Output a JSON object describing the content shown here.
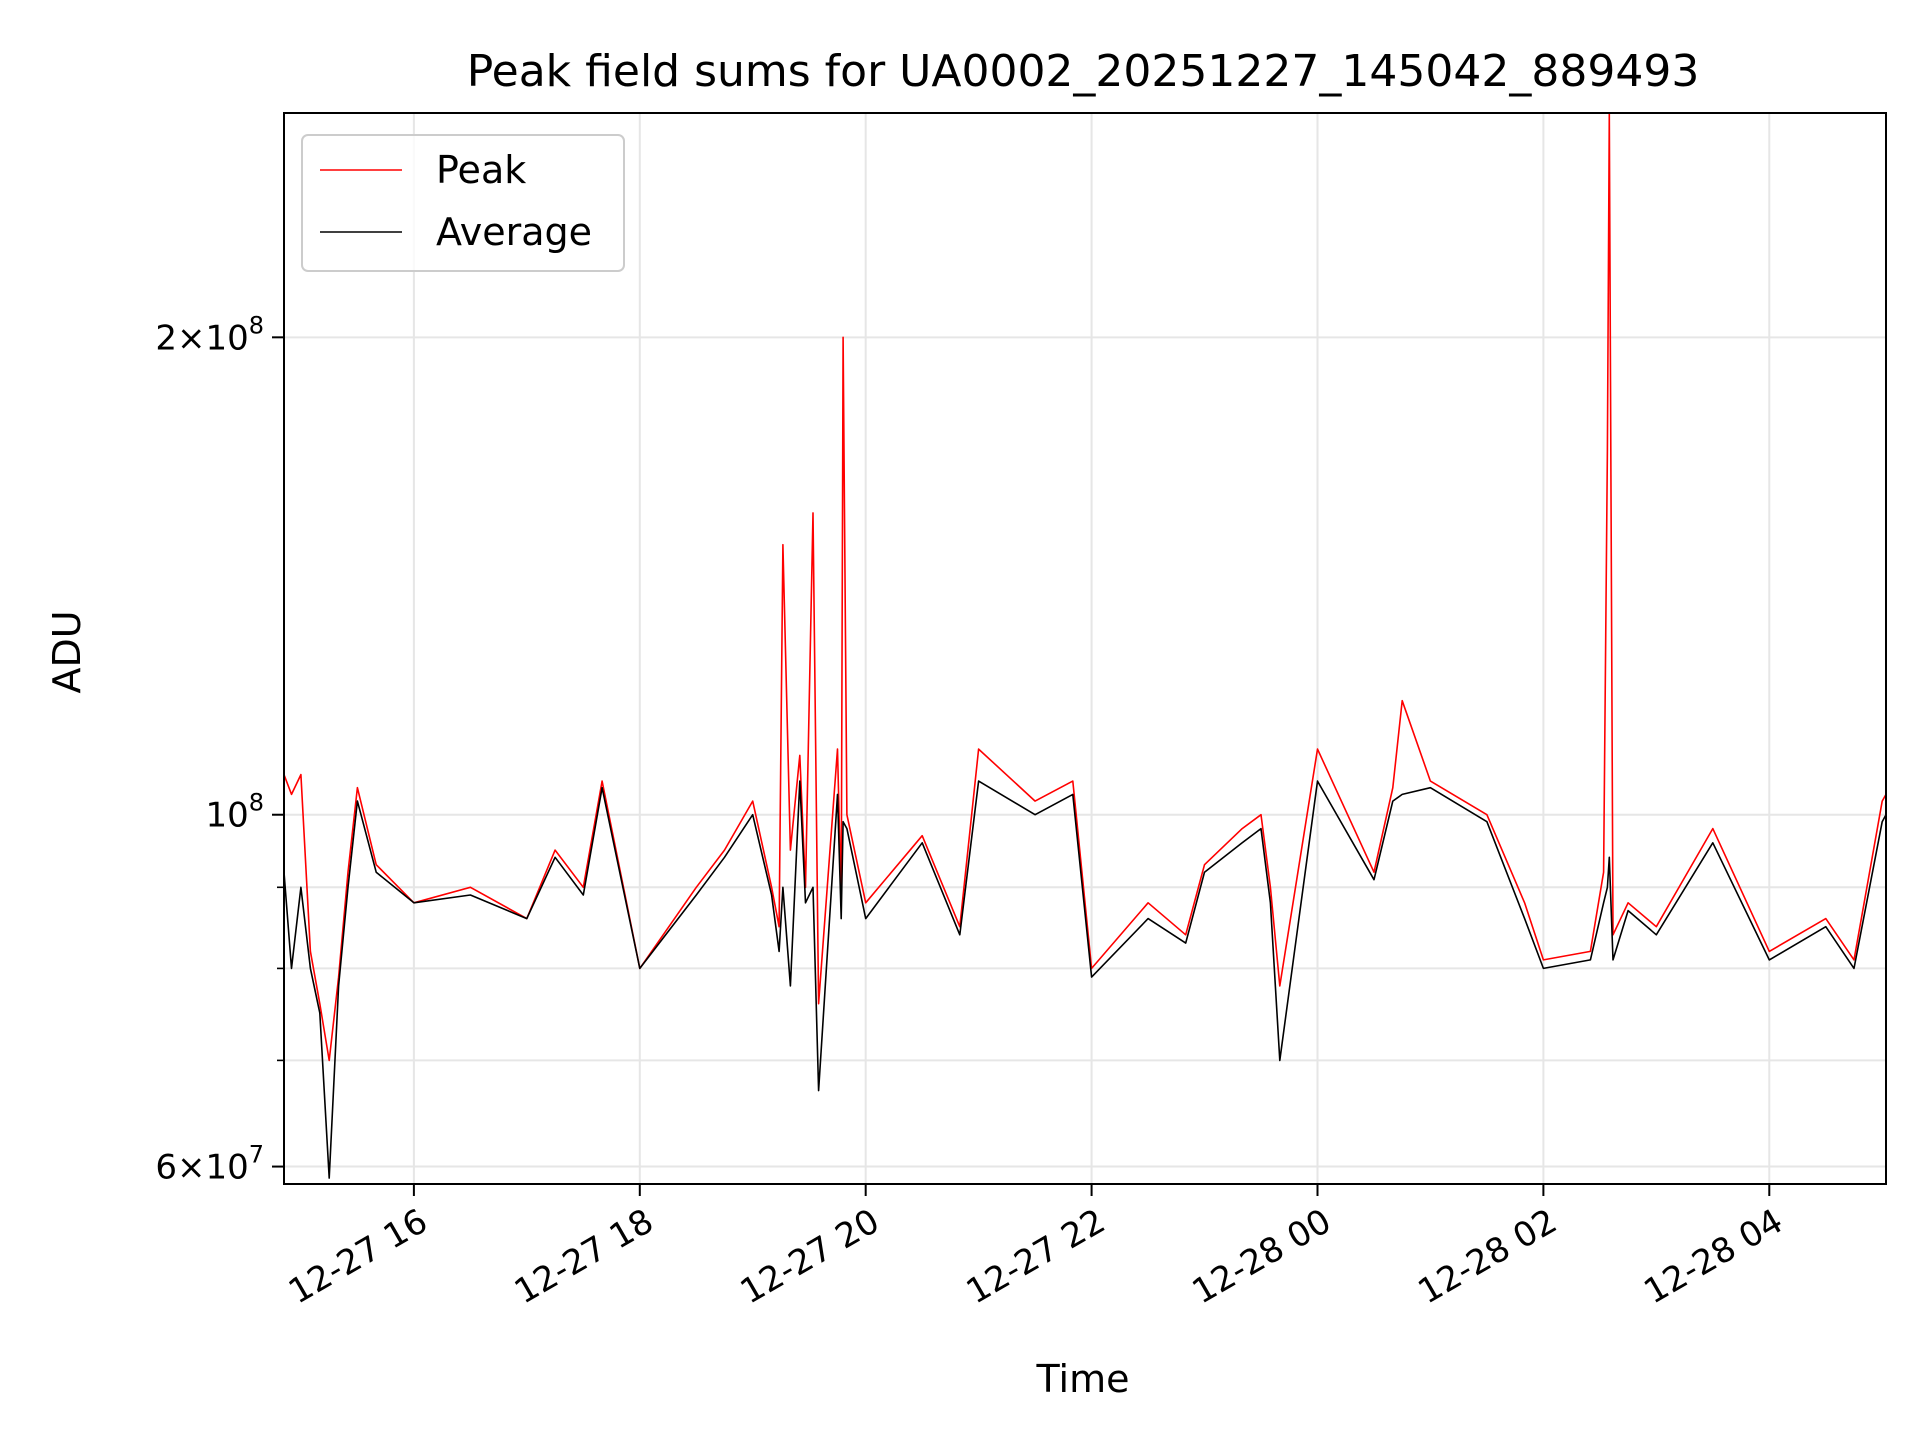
{
  "chart_data": {
    "type": "line",
    "title": "Peak field sums for UA0002_20251227_145042_889493",
    "xlabel": "Time",
    "ylabel": "ADU",
    "y_scale": "log",
    "ylim": [
      58500000,
      277000000
    ],
    "xlim": [
      "2025-12-27 14:51",
      "2025-12-28 05:02"
    ],
    "grid": true,
    "legend_position": "top-left",
    "x_ticks": [
      {
        "at": "2025-12-27 16:00",
        "label": "12-27 16"
      },
      {
        "at": "2025-12-27 18:00",
        "label": "12-27 18"
      },
      {
        "at": "2025-12-27 20:00",
        "label": "12-27 20"
      },
      {
        "at": "2025-12-27 22:00",
        "label": "12-27 22"
      },
      {
        "at": "2025-12-28 00:00",
        "label": "12-28 00"
      },
      {
        "at": "2025-12-28 02:00",
        "label": "12-28 02"
      },
      {
        "at": "2025-12-28 04:00",
        "label": "12-28 04"
      }
    ],
    "y_ticks": [
      {
        "value": 60000000,
        "mantissa": "6",
        "exponent": "7"
      },
      {
        "value": 100000000,
        "mantissa": "",
        "exponent": "8"
      },
      {
        "value": 200000000,
        "mantissa": "2",
        "exponent": "8"
      }
    ],
    "y_minor_ticks": [
      70000000,
      80000000,
      90000000
    ],
    "series": [
      {
        "name": "Peak",
        "color": "#ff0000",
        "x": [
          "2025-12-27 14:51",
          "2025-12-27 14:55",
          "2025-12-27 15:00",
          "2025-12-27 15:05",
          "2025-12-27 15:10",
          "2025-12-27 15:15",
          "2025-12-27 15:20",
          "2025-12-27 15:25",
          "2025-12-27 15:30",
          "2025-12-27 15:40",
          "2025-12-27 16:00",
          "2025-12-27 16:30",
          "2025-12-27 17:00",
          "2025-12-27 17:15",
          "2025-12-27 17:30",
          "2025-12-27 17:40",
          "2025-12-27 18:00",
          "2025-12-27 18:30",
          "2025-12-27 18:45",
          "2025-12-27 19:00",
          "2025-12-27 19:10",
          "2025-12-27 19:14",
          "2025-12-27 19:16",
          "2025-12-27 19:20",
          "2025-12-27 19:25",
          "2025-12-27 19:28",
          "2025-12-27 19:32",
          "2025-12-27 19:35",
          "2025-12-27 19:45",
          "2025-12-27 19:47",
          "2025-12-27 19:48",
          "2025-12-27 19:50",
          "2025-12-27 20:00",
          "2025-12-27 20:30",
          "2025-12-27 20:50",
          "2025-12-27 21:00",
          "2025-12-27 21:30",
          "2025-12-27 21:50",
          "2025-12-27 22:00",
          "2025-12-27 22:30",
          "2025-12-27 22:50",
          "2025-12-27 23:00",
          "2025-12-27 23:20",
          "2025-12-27 23:30",
          "2025-12-27 23:35",
          "2025-12-27 23:40",
          "2025-12-28 00:00",
          "2025-12-28 00:30",
          "2025-12-28 00:40",
          "2025-12-28 00:45",
          "2025-12-28 01:00",
          "2025-12-28 01:30",
          "2025-12-28 01:50",
          "2025-12-28 02:00",
          "2025-12-28 02:25",
          "2025-12-28 02:32",
          "2025-12-28 02:34",
          "2025-12-28 02:35",
          "2025-12-28 02:37",
          "2025-12-28 02:45",
          "2025-12-28 03:00",
          "2025-12-28 03:30",
          "2025-12-28 04:00",
          "2025-12-28 04:30",
          "2025-12-28 04:45",
          "2025-12-28 05:00",
          "2025-12-28 05:02"
        ],
        "y": [
          106000000,
          103000000,
          106000000,
          82000000,
          76000000,
          70000000,
          79000000,
          92000000,
          104000000,
          93000000,
          88000000,
          90000000,
          86000000,
          95000000,
          90000000,
          105000000,
          80000000,
          90000000,
          95000000,
          102000000,
          90000000,
          85000000,
          148000000,
          95000000,
          109000000,
          90000000,
          155000000,
          76000000,
          110000000,
          88000000,
          200000000,
          100000000,
          88000000,
          97000000,
          85000000,
          110000000,
          102000000,
          105000000,
          80000000,
          88000000,
          84000000,
          93000000,
          98000000,
          100000000,
          90000000,
          78000000,
          110000000,
          92000000,
          104000000,
          118000000,
          105000000,
          100000000,
          88000000,
          81000000,
          82000000,
          92000000,
          170000000,
          277000000,
          84000000,
          88000000,
          85000000,
          98000000,
          82000000,
          86000000,
          81000000,
          102000000,
          103000000
        ]
      },
      {
        "name": "Average",
        "color": "#000000",
        "x": [
          "2025-12-27 14:51",
          "2025-12-27 14:55",
          "2025-12-27 15:00",
          "2025-12-27 15:05",
          "2025-12-27 15:10",
          "2025-12-27 15:15",
          "2025-12-27 15:20",
          "2025-12-27 15:25",
          "2025-12-27 15:30",
          "2025-12-27 15:40",
          "2025-12-27 16:00",
          "2025-12-27 16:30",
          "2025-12-27 17:00",
          "2025-12-27 17:15",
          "2025-12-27 17:30",
          "2025-12-27 17:40",
          "2025-12-27 18:00",
          "2025-12-27 18:30",
          "2025-12-27 18:45",
          "2025-12-27 19:00",
          "2025-12-27 19:10",
          "2025-12-27 19:14",
          "2025-12-27 19:16",
          "2025-12-27 19:20",
          "2025-12-27 19:25",
          "2025-12-27 19:28",
          "2025-12-27 19:32",
          "2025-12-27 19:35",
          "2025-12-27 19:45",
          "2025-12-27 19:47",
          "2025-12-27 19:48",
          "2025-12-27 19:50",
          "2025-12-27 20:00",
          "2025-12-27 20:30",
          "2025-12-27 20:50",
          "2025-12-27 21:00",
          "2025-12-27 21:30",
          "2025-12-27 21:50",
          "2025-12-27 22:00",
          "2025-12-27 22:30",
          "2025-12-27 22:50",
          "2025-12-27 23:00",
          "2025-12-27 23:20",
          "2025-12-27 23:30",
          "2025-12-27 23:35",
          "2025-12-27 23:40",
          "2025-12-28 00:00",
          "2025-12-28 00:30",
          "2025-12-28 00:40",
          "2025-12-28 00:45",
          "2025-12-28 01:00",
          "2025-12-28 01:30",
          "2025-12-28 01:50",
          "2025-12-28 02:00",
          "2025-12-28 02:25",
          "2025-12-28 02:32",
          "2025-12-28 02:34",
          "2025-12-28 02:35",
          "2025-12-28 02:37",
          "2025-12-28 02:45",
          "2025-12-28 03:00",
          "2025-12-28 03:30",
          "2025-12-28 04:00",
          "2025-12-28 04:30",
          "2025-12-28 04:45",
          "2025-12-28 05:00",
          "2025-12-28 05:02"
        ],
        "y": [
          92000000,
          80000000,
          90000000,
          80000000,
          75000000,
          59000000,
          78000000,
          90000000,
          102000000,
          92000000,
          88000000,
          89000000,
          86000000,
          94000000,
          89000000,
          104000000,
          80000000,
          89000000,
          94000000,
          100000000,
          89000000,
          82000000,
          90000000,
          78000000,
          105000000,
          88000000,
          90000000,
          67000000,
          103000000,
          86000000,
          99000000,
          98000000,
          86000000,
          96000000,
          84000000,
          105000000,
          100000000,
          103000000,
          79000000,
          86000000,
          83000000,
          92000000,
          96000000,
          98000000,
          88000000,
          70000000,
          105000000,
          91000000,
          102000000,
          103000000,
          104000000,
          99000000,
          86000000,
          80000000,
          81000000,
          88000000,
          90000000,
          94000000,
          81000000,
          87000000,
          84000000,
          96000000,
          81000000,
          85000000,
          80000000,
          99000000,
          100000000
        ]
      }
    ]
  }
}
